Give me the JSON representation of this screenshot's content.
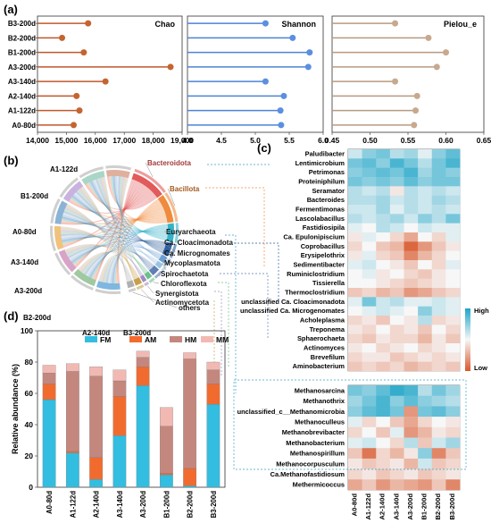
{
  "panels": {
    "a": {
      "label": "(a)"
    },
    "b": {
      "label": "(b)"
    },
    "c": {
      "label": "(c)"
    },
    "d": {
      "label": "(d)"
    }
  },
  "chart_data": [
    {
      "type": "lollipop",
      "panel": "a",
      "title": "Chao",
      "categories": [
        "A0-80d",
        "A1-122d",
        "A2-140d",
        "A3-140d",
        "A3-200d",
        "B1-200d",
        "B2-200d",
        "B3-200d"
      ],
      "values": [
        15250,
        15450,
        15350,
        16350,
        18600,
        15600,
        14850,
        15750
      ],
      "xlim": [
        14000,
        19000
      ],
      "xticks": [
        "14,000",
        "15,000",
        "16,000",
        "17,000",
        "18,000",
        "19,000"
      ],
      "color": "#c0572b",
      "marker": "#c4652f"
    },
    {
      "type": "lollipop",
      "panel": "a",
      "title": "Shannon",
      "categories": [
        "A0-80d",
        "A1-122d",
        "A2-140d",
        "A3-140d",
        "A3-200d",
        "B1-200d",
        "B2-200d",
        "B3-200d"
      ],
      "values": [
        5.38,
        5.37,
        5.42,
        5.15,
        5.78,
        5.8,
        5.55,
        5.15
      ],
      "xlim": [
        4.0,
        6.0
      ],
      "xticks": [
        "4.0",
        "4.5",
        "5.0",
        "5.5",
        "6.0"
      ],
      "color": "#4b83d6",
      "marker": "#5b8fe0"
    },
    {
      "type": "lollipop",
      "panel": "a",
      "title": "Pielou_e",
      "categories": [
        "A0-80d",
        "A1-122d",
        "A2-140d",
        "A3-140d",
        "A3-200d",
        "B1-200d",
        "B2-200d",
        "B3-200d"
      ],
      "values": [
        0.558,
        0.56,
        0.562,
        0.533,
        0.588,
        0.6,
        0.577,
        0.533
      ],
      "xlim": [
        0.45,
        0.65
      ],
      "xticks": [
        "0.45",
        "0.50",
        "0.55",
        "0.60",
        "0.65"
      ],
      "color": "#b99a80",
      "marker": "#c8a98e"
    },
    {
      "type": "stacked-bar",
      "panel": "d",
      "ylabel": "Relative abundance (%)",
      "ylim": [
        0,
        100
      ],
      "yticks": [
        "0",
        "20",
        "40",
        "60",
        "80",
        "100"
      ],
      "categories": [
        "A0-80d",
        "A1-122d",
        "A2-140d",
        "A3-140d",
        "A3-200d",
        "B1-200d",
        "B2-200d",
        "B3-200d"
      ],
      "series": [
        {
          "name": "FM",
          "color": "#33bde0",
          "values": [
            56,
            22,
            5,
            33,
            65,
            8,
            1,
            53
          ]
        },
        {
          "name": "AM",
          "color": "#f26b2e",
          "values": [
            10,
            1,
            14,
            25,
            12,
            1,
            11,
            13
          ]
        },
        {
          "name": "HM",
          "color": "#c4877e",
          "values": [
            7,
            51,
            52,
            10,
            6,
            30,
            70,
            9
          ]
        },
        {
          "name": "MM",
          "color": "#f2b9b3",
          "values": [
            5,
            5,
            6,
            7,
            4,
            12,
            4,
            5
          ]
        }
      ]
    },
    {
      "type": "heatmap",
      "panel": "c",
      "columns": [
        "A0-80d",
        "A1-122d",
        "A2-140d",
        "A3-140d",
        "A3-200d",
        "B1-200d",
        "B2-200d",
        "B3-200d"
      ],
      "legend": {
        "high": "High",
        "low": "Low"
      },
      "rows_top": [
        "Paludibacter",
        "Lentimicrobium",
        "Petrimonas",
        "Proteiniphilum",
        "Seramator",
        "Bacteroides",
        "Fermentimonas",
        "Lascolabacillus",
        "Fastidiosipila",
        "Ca. Epulonipiscium",
        "Coprobacillus",
        "Erysipelothrix",
        "Sedimentibacter",
        "Ruminiclostridium",
        "Tissierella",
        "Thermoclostridium",
        "unclassified Ca. Cloacimonadota",
        "unclassified Ca. Microgenomates",
        "Acholeplasma",
        "Treponema",
        "Sphaerochaeta",
        "Actinomyces",
        "Brevefilum",
        "Aminobacterium"
      ],
      "values_top": [
        [
          0.2,
          0.5,
          0.6,
          0.3,
          0.4,
          0.1,
          0.5,
          0.7
        ],
        [
          0.6,
          0.7,
          0.5,
          0.8,
          0.6,
          0.3,
          0.6,
          0.8
        ],
        [
          0.5,
          0.6,
          0.7,
          0.6,
          0.8,
          0.4,
          0.6,
          0.5
        ],
        [
          0.6,
          0.5,
          0.6,
          0.5,
          0.7,
          0.5,
          0.6,
          0.6
        ],
        [
          0.3,
          0.2,
          0.3,
          -0.1,
          0.3,
          0.2,
          0.3,
          0.2
        ],
        [
          0.3,
          0.3,
          0.4,
          0.2,
          0.3,
          0.2,
          0.4,
          0.3
        ],
        [
          0.2,
          0.2,
          0.4,
          0.1,
          0.3,
          0.2,
          0.3,
          0.2
        ],
        [
          0.3,
          0.2,
          0.3,
          0.4,
          0.2,
          0.5,
          0.3,
          0.6
        ],
        [
          0.1,
          0.0,
          0.3,
          0.2,
          0.0,
          0.2,
          0.1,
          0.1
        ],
        [
          -0.1,
          0.1,
          0.0,
          -0.2,
          -0.5,
          0.0,
          -0.2,
          0.1
        ],
        [
          -0.2,
          0.0,
          -0.3,
          -0.4,
          -0.9,
          -0.6,
          -0.3,
          -0.1
        ],
        [
          -0.1,
          0.1,
          -0.2,
          -0.3,
          -0.7,
          -0.4,
          -0.2,
          0.0
        ],
        [
          0.1,
          0.2,
          0.0,
          -0.1,
          -0.3,
          0.0,
          -0.2,
          0.1
        ],
        [
          0.0,
          0.1,
          -0.1,
          0.0,
          -0.2,
          -0.3,
          -0.1,
          0.0
        ],
        [
          0.0,
          0.0,
          -0.1,
          -0.2,
          -0.3,
          -0.2,
          -0.1,
          0.0
        ],
        [
          -0.3,
          -0.2,
          -0.4,
          -0.3,
          -0.6,
          -0.5,
          -0.3,
          -0.2
        ],
        [
          0.1,
          0.6,
          0.2,
          0.3,
          0.1,
          0.1,
          0.2,
          0.1
        ],
        [
          0.0,
          0.1,
          0.2,
          0.1,
          0.0,
          0.5,
          0.2,
          0.1
        ],
        [
          -0.2,
          -0.1,
          -0.3,
          0.0,
          -0.1,
          0.3,
          -0.2,
          -0.1
        ],
        [
          -0.1,
          -0.2,
          0.0,
          -0.2,
          -0.1,
          -0.3,
          0.0,
          -0.2
        ],
        [
          -0.2,
          -0.3,
          -0.1,
          -0.2,
          -0.2,
          -0.4,
          -0.1,
          -0.3
        ],
        [
          -0.1,
          0.0,
          -0.2,
          -0.1,
          0.0,
          -0.2,
          -0.1,
          0.0
        ],
        [
          -0.2,
          -0.1,
          -0.1,
          -0.3,
          -0.2,
          -0.1,
          -0.2,
          -0.1
        ],
        [
          -0.3,
          -0.2,
          -0.3,
          -0.2,
          -0.4,
          -0.3,
          -0.2,
          -0.3
        ]
      ],
      "rows_bottom": [
        "Methanosarcina",
        "Methanothrix",
        "unclassified_c__Methanomicrobia",
        "Methanoculleus",
        "Methanobrevibacter",
        "Methanobacterium",
        "Methanospirillum",
        "Methanocorpusculum",
        "Ca.Methanofastidiosum",
        "Methermicoccus"
      ],
      "values_bottom": [
        [
          0.6,
          0.5,
          0.7,
          0.9,
          0.8,
          0.3,
          0.6,
          0.4
        ],
        [
          0.4,
          0.6,
          0.8,
          0.5,
          0.7,
          0.5,
          0.4,
          0.3
        ],
        [
          0.5,
          0.7,
          0.8,
          0.6,
          -0.6,
          0.6,
          0.7,
          0.5
        ],
        [
          0.1,
          -0.2,
          0.0,
          -0.3,
          -0.5,
          -0.2,
          0.0,
          -0.1
        ],
        [
          -0.2,
          0.0,
          -0.3,
          0.1,
          -0.6,
          -0.4,
          -0.1,
          -0.2
        ],
        [
          0.1,
          0.2,
          0.0,
          -0.2,
          0.3,
          -0.3,
          0.2,
          0.4
        ],
        [
          -0.3,
          -0.8,
          -0.2,
          -0.4,
          -0.1,
          0.5,
          -0.7,
          -0.3
        ],
        [
          -0.1,
          -0.3,
          -0.2,
          -0.1,
          -0.4,
          0.2,
          -0.3,
          -0.2
        ],
        [
          -0.2,
          -0.1,
          -0.3,
          -0.2,
          -0.1,
          -0.3,
          -0.2,
          -0.1
        ],
        [
          -0.5,
          -0.3,
          -0.6,
          -0.4,
          -0.5,
          -0.6,
          -0.3,
          -0.7
        ]
      ]
    },
    {
      "type": "chord",
      "panel": "b",
      "samples": [
        "A1-122d",
        "B1-200d",
        "A0-80d",
        "A3-140d",
        "A3-200d",
        "B2-200d",
        "A2-140d",
        "B3-200d"
      ],
      "phyla": [
        "Bacteroidota",
        "Bacillota",
        "Euryarchaeota",
        "Ca. Cloacimonadota",
        "Ca. Micrognomates",
        "Mycoplasmatota",
        "Spirochaetota",
        "Chloroflexota",
        "Synergistota",
        "Actinomycetota",
        "others"
      ],
      "phylum_colors": [
        "#e25a5a",
        "#f08a3c",
        "#35b3c8",
        "#2e5f9e",
        "#6a9fd4",
        "#9bc2e0",
        "#5f7fb5",
        "#6dbf8a",
        "#9f8ac2",
        "#c8a04b",
        "#b0b0b0"
      ]
    }
  ]
}
